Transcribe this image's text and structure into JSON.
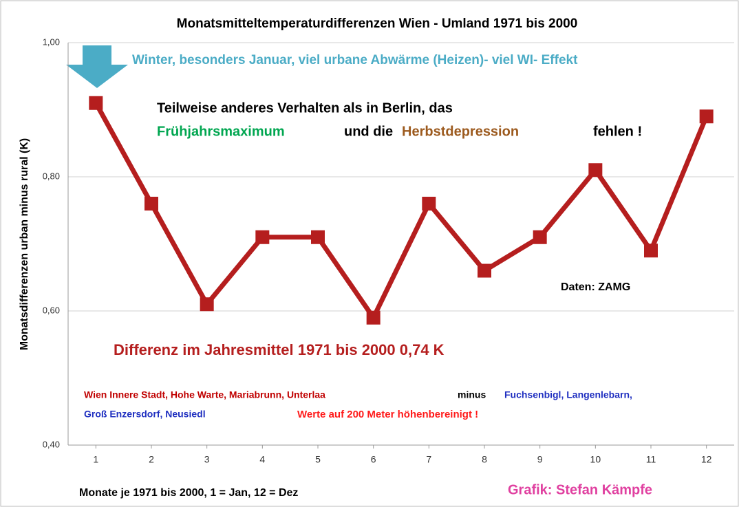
{
  "chart_data": {
    "type": "line",
    "title": "Monatsmitteltemperaturdifferenzen Wien - Umland 1971 bis 2000",
    "x_label": "Monate je 1971 bis 2000, 1 = Jan, 12 = Dez",
    "y_label": "Monatsdifferenzen urban minus rural (K)",
    "x": [
      1,
      2,
      3,
      4,
      5,
      6,
      7,
      8,
      9,
      10,
      11,
      12
    ],
    "xlim": [
      0.5,
      12.5
    ],
    "xticks": [
      1,
      2,
      3,
      4,
      5,
      6,
      7,
      8,
      9,
      10,
      11,
      12
    ],
    "ylim": [
      0.4,
      1.0
    ],
    "yticks": [
      {
        "value": 0.4,
        "label": "0,40"
      },
      {
        "value": 0.6,
        "label": "0,60"
      },
      {
        "value": 0.8,
        "label": "0,80"
      },
      {
        "value": 1.0,
        "label": "1,00"
      }
    ],
    "grid": true,
    "series": [
      {
        "color": "#b51e1e",
        "values": [
          0.91,
          0.76,
          0.61,
          0.71,
          0.71,
          0.59,
          0.76,
          0.66,
          0.71,
          0.81,
          0.69,
          0.89
        ]
      }
    ],
    "annotations": [
      {
        "text": "Winter, besonders Januar, viel urbane Abwärme (Heizen)-  viel WI- Effekt",
        "color": "#4bacc6"
      },
      {
        "text": "Teilweise anderes Verhalten als in Berlin, das",
        "color": "#000000"
      },
      {
        "text": "Frühjahrsmaximum",
        "color": "#00a650"
      },
      {
        "text": "und die",
        "color": "#000000"
      },
      {
        "text": "Herbstdepression",
        "color": "#9c5a1e"
      },
      {
        "text": "fehlen !",
        "color": "#000000"
      },
      {
        "text": "Daten: ZAMG",
        "color": "#000000"
      },
      {
        "text": "Differenz im Jahresmittel 1971 bis 2000 0,74 K",
        "color": "#b51e1e"
      },
      {
        "text": "Wien Innere Stadt, Hohe Warte, Mariabrunn,  Unterlaa",
        "color": "#c00000"
      },
      {
        "text": "minus",
        "color": "#000000"
      },
      {
        "text": "Fuchsenbigl, Langenlebarn,",
        "color": "#1f2fc0"
      },
      {
        "text": "Groß Enzersdorf,  Neusiedl",
        "color": "#1f2fc0"
      },
      {
        "text": "Werte auf 200 Meter höhenbereinigt !",
        "color": "#ff1a1a"
      },
      {
        "text": "Grafik: Stefan Kämpfe",
        "color": "#e040a0"
      }
    ]
  }
}
